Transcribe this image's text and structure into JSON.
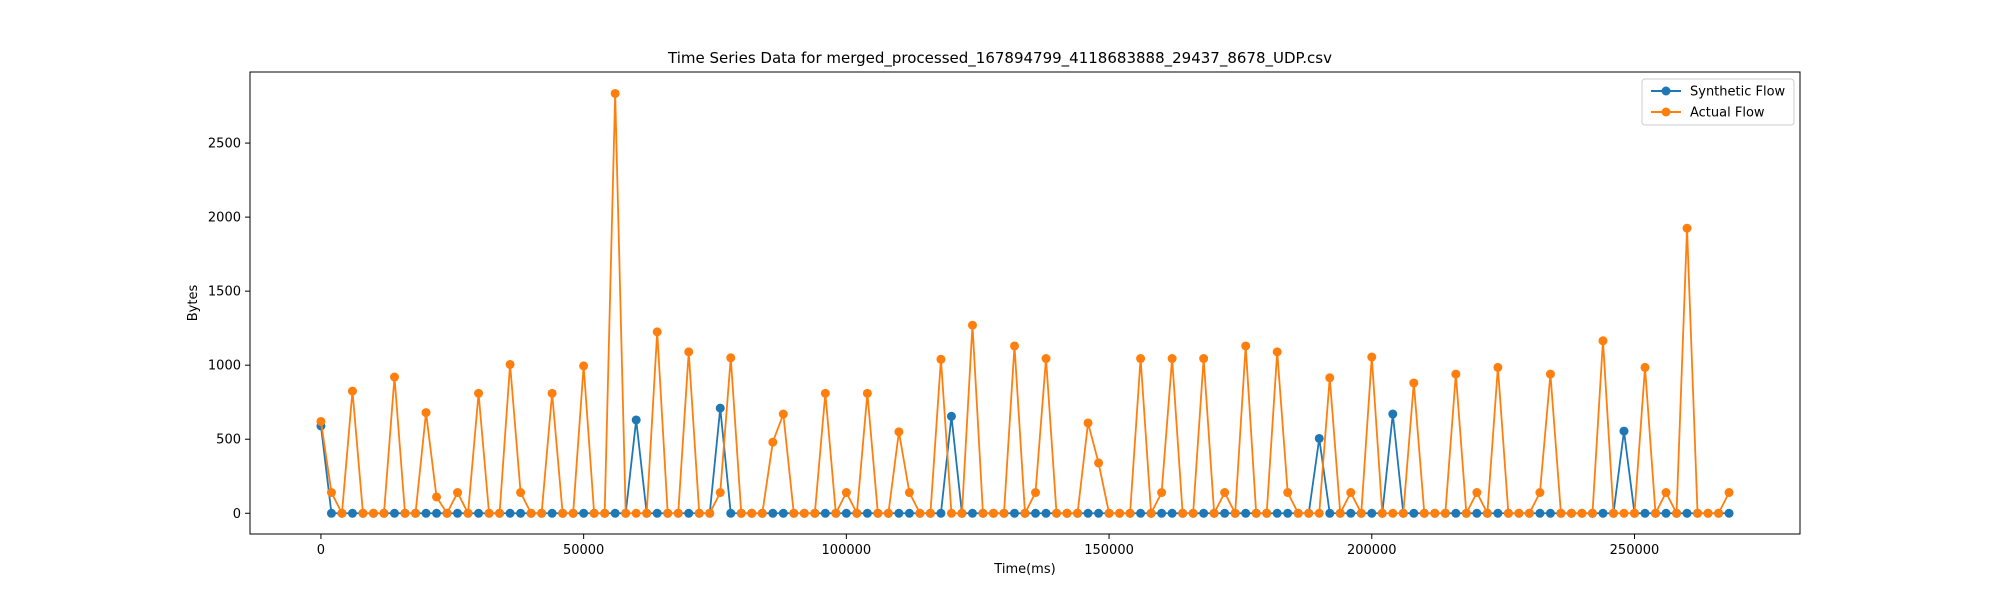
{
  "chart_data": {
    "type": "line",
    "title": "Time Series Data for merged_processed_167894799_4118683888_29437_8678_UDP.csv",
    "xlabel": "Time(ms)",
    "ylabel": "Bytes",
    "xlim": [
      -13500,
      281500
    ],
    "ylim": [
      -140,
      2980
    ],
    "xticks": [
      0,
      50000,
      100000,
      150000,
      200000,
      250000
    ],
    "yticks": [
      0,
      500,
      1000,
      1500,
      2000,
      2500
    ],
    "legend_position": "top-right",
    "x": [
      0,
      2000,
      4000,
      6000,
      8000,
      10000,
      12000,
      14000,
      16000,
      18000,
      20000,
      22000,
      24000,
      26000,
      28000,
      30000,
      32000,
      34000,
      36000,
      38000,
      40000,
      42000,
      44000,
      46000,
      48000,
      50000,
      52000,
      54000,
      56000,
      58000,
      60000,
      62000,
      64000,
      66000,
      68000,
      70000,
      72000,
      74000,
      76000,
      78000,
      80000,
      82000,
      84000,
      86000,
      88000,
      90000,
      92000,
      94000,
      96000,
      98000,
      100000,
      102000,
      104000,
      106000,
      108000,
      110000,
      112000,
      114000,
      116000,
      118000,
      120000,
      122000,
      124000,
      126000,
      128000,
      130000,
      132000,
      134000,
      136000,
      138000,
      140000,
      142000,
      144000,
      146000,
      148000,
      150000,
      152000,
      154000,
      156000,
      158000,
      160000,
      162000,
      164000,
      166000,
      168000,
      170000,
      172000,
      174000,
      176000,
      178000,
      180000,
      182000,
      184000,
      186000,
      188000,
      190000,
      192000,
      194000,
      196000,
      198000,
      200000,
      202000,
      204000,
      206000,
      208000,
      210000,
      212000,
      214000,
      216000,
      218000,
      220000,
      222000,
      224000,
      226000,
      228000,
      230000,
      232000,
      234000,
      236000,
      238000,
      240000,
      242000,
      244000,
      246000,
      248000,
      250000,
      252000,
      254000,
      256000,
      258000,
      260000,
      262000,
      264000,
      266000,
      268000
    ],
    "series": [
      {
        "name": "Synthetic Flow",
        "color": "#1f77b4",
        "values": [
          590,
          0,
          0,
          0,
          0,
          0,
          0,
          0,
          0,
          0,
          0,
          0,
          0,
          0,
          0,
          0,
          0,
          0,
          0,
          0,
          0,
          0,
          0,
          0,
          0,
          0,
          0,
          0,
          0,
          0,
          630,
          0,
          0,
          0,
          0,
          0,
          0,
          0,
          710,
          0,
          0,
          0,
          0,
          0,
          0,
          0,
          0,
          0,
          0,
          0,
          0,
          0,
          0,
          0,
          0,
          0,
          0,
          0,
          0,
          0,
          655,
          0,
          0,
          0,
          0,
          0,
          0,
          0,
          0,
          0,
          0,
          0,
          0,
          0,
          0,
          0,
          0,
          0,
          0,
          0,
          0,
          0,
          0,
          0,
          0,
          0,
          0,
          0,
          0,
          0,
          0,
          0,
          0,
          0,
          0,
          505,
          0,
          0,
          0,
          0,
          0,
          0,
          670,
          0,
          0,
          0,
          0,
          0,
          0,
          0,
          0,
          0,
          0,
          0,
          0,
          0,
          0,
          0,
          0,
          0,
          0,
          0,
          0,
          0,
          555,
          0,
          0,
          0,
          0,
          0,
          0,
          0,
          0,
          0,
          0
        ]
      },
      {
        "name": "Actual Flow",
        "color": "#ff7f0e",
        "values": [
          620,
          140,
          0,
          825,
          0,
          0,
          0,
          920,
          0,
          0,
          680,
          110,
          0,
          140,
          0,
          810,
          0,
          0,
          1005,
          140,
          0,
          0,
          810,
          0,
          0,
          995,
          0,
          0,
          2835,
          0,
          0,
          0,
          1225,
          0,
          0,
          1090,
          0,
          0,
          140,
          1050,
          0,
          0,
          0,
          480,
          670,
          0,
          0,
          0,
          810,
          0,
          140,
          0,
          810,
          0,
          0,
          550,
          140,
          0,
          0,
          1040,
          0,
          0,
          1270,
          0,
          0,
          0,
          1130,
          0,
          140,
          1045,
          0,
          0,
          0,
          610,
          340,
          0,
          0,
          0,
          1045,
          0,
          140,
          1045,
          0,
          0,
          1045,
          0,
          140,
          0,
          1130,
          0,
          0,
          1090,
          140,
          0,
          0,
          0,
          915,
          0,
          140,
          0,
          1055,
          0,
          0,
          0,
          880,
          0,
          0,
          0,
          940,
          0,
          140,
          0,
          985,
          0,
          0,
          0,
          140,
          940,
          0,
          0,
          0,
          0,
          1165,
          0,
          0,
          0,
          985,
          0,
          140,
          0,
          1925,
          0,
          0,
          0,
          140
        ]
      }
    ]
  }
}
